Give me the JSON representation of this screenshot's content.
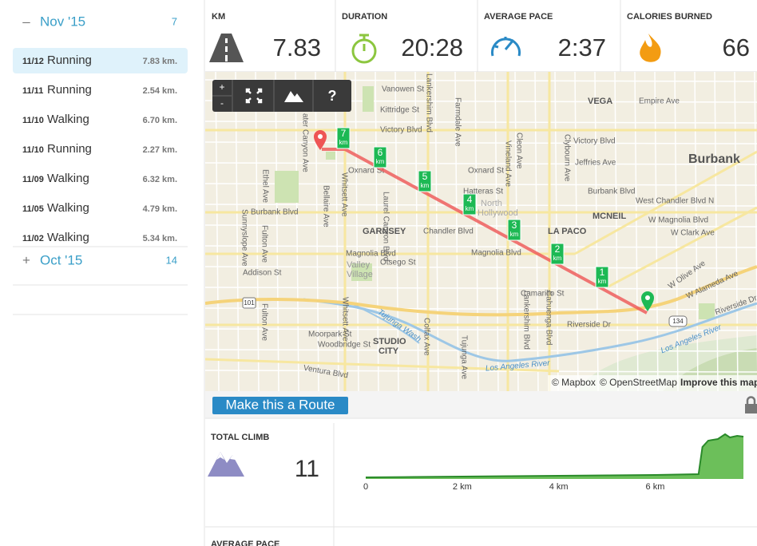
{
  "sidebar": {
    "months": [
      {
        "toggle": "–",
        "label": "Nov '15",
        "count": 7,
        "activities": [
          {
            "date": "11/12",
            "type": "Running",
            "distance": "7.83 km.",
            "selected": true
          },
          {
            "date": "11/11",
            "type": "Running",
            "distance": "2.54 km."
          },
          {
            "date": "11/10",
            "type": "Walking",
            "distance": "6.70 km."
          },
          {
            "date": "11/10",
            "type": "Running",
            "distance": "2.27 km."
          },
          {
            "date": "11/09",
            "type": "Walking",
            "distance": "6.32 km."
          },
          {
            "date": "11/05",
            "type": "Walking",
            "distance": "4.79 km."
          },
          {
            "date": "11/02",
            "type": "Walking",
            "distance": "5.34 km."
          }
        ]
      },
      {
        "toggle": "+",
        "label": "Oct '15",
        "count": 14
      }
    ]
  },
  "stats": [
    {
      "label": "KM",
      "value": "7.83"
    },
    {
      "label": "DURATION",
      "value": "20:28"
    },
    {
      "label": "AVERAGE PACE",
      "value": "2:37"
    },
    {
      "label": "CALORIES BURNED",
      "value": "66"
    }
  ],
  "map": {
    "controls": {
      "zoom_in": "+",
      "zoom_out": "-",
      "help": "?"
    },
    "km_markers": [
      "1",
      "2",
      "3",
      "4",
      "5",
      "6",
      "7"
    ],
    "km_unit": "km",
    "labels": [
      "Vanowen St",
      "Kittridge St",
      "Victory Blvd",
      "Oxnard St",
      "Oxnard St",
      "Hatteras St",
      "Chandler Blvd",
      "Magnolia Blvd",
      "Magnolia Blvd",
      "Otsego St",
      "Burbank Blvd",
      "Addison St",
      "GARNSEY",
      "Valley",
      "Village",
      "VEGA",
      "Empire Ave",
      "Victory Blvd",
      "Jeffries Ave",
      "Burbank",
      "Burbank Blvd",
      "West Chandler Blvd N",
      "MCNEIL",
      "W Magnolia Blvd",
      "LA PACO",
      "W Clark Ave",
      "Camarillo St",
      "Riverside Dr",
      "W Olive Ave",
      "W Alameda Ave",
      "Moorpark St",
      "Woodbridge St",
      "STUDIO",
      "CITY",
      "Ventura Blvd",
      "North",
      "Hollywood",
      "101",
      "134",
      "Riverside Dr"
    ],
    "vertical_labels": [
      "Ethel Ave",
      "Fulton Ave",
      "Bellaire Ave",
      "Whitsett Ave",
      "Laurel Canyon Blvd",
      "Lankershim Blvd",
      "Farmdale Ave",
      "Vineland Ave",
      "Cleon Ave",
      "Colfax Ave",
      "Tujunga Ave",
      "Cahuenga Blvd",
      "Lankershim Blvd",
      "Whitsett Ave",
      "Sunnyslope Ave",
      "ater Canyon Ave",
      "Clybourn Ave",
      "Fulton Ave"
    ],
    "river_labels": [
      "Tujunga Wash",
      "Los Angeles River",
      "Los Angeles River"
    ],
    "attribution": {
      "mapbox": "© Mapbox",
      "osm": "© OpenStreetMap",
      "improve": "Improve this map"
    }
  },
  "route_button": "Make this a Route",
  "climb": {
    "label": "TOTAL CLIMB",
    "value": 11,
    "elevation": {
      "xlim": [
        0,
        7.83
      ],
      "ylim": [
        0,
        60
      ],
      "xticks": [
        {
          "value": 0,
          "label": "0"
        },
        {
          "value": 2,
          "label": "2 km"
        },
        {
          "value": 4,
          "label": "4 km"
        },
        {
          "value": 6,
          "label": "6 km"
        }
      ],
      "x": [
        0,
        1,
        2,
        3,
        4,
        5,
        6,
        6.9,
        6.98,
        7.1,
        7.3,
        7.45,
        7.55,
        7.7,
        7.83
      ],
      "values": [
        2,
        2.5,
        3,
        3.5,
        4,
        4.5,
        5,
        6,
        40,
        48,
        50,
        56,
        52,
        54,
        53
      ]
    }
  },
  "next_section": "AVERAGE PACE"
}
